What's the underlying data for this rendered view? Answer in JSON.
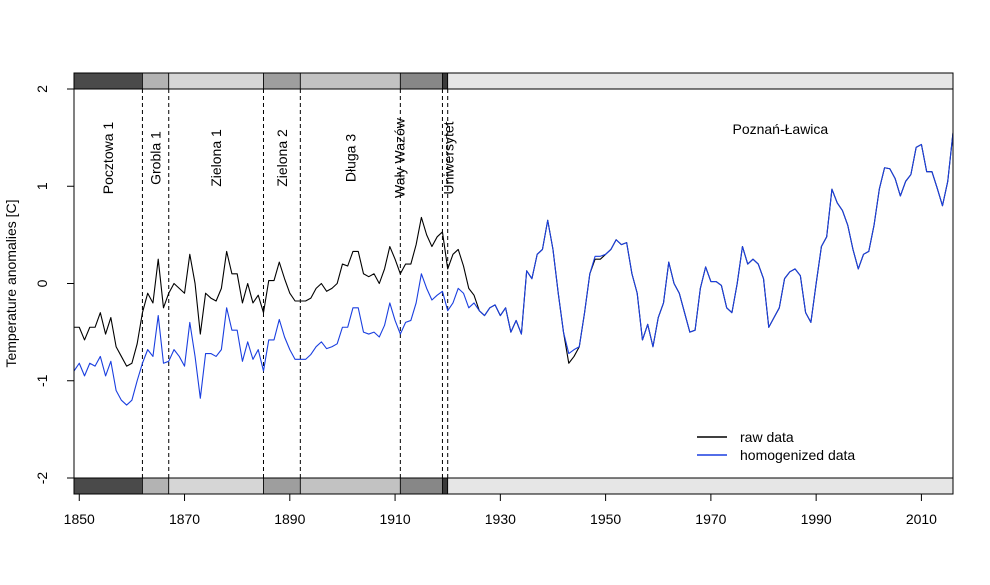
{
  "chart_data": {
    "type": "line",
    "title": "",
    "xlabel": "",
    "ylabel": "Temperature anomalies [C]",
    "xlim": [
      1849,
      2016
    ],
    "ylim": [
      -2,
      2
    ],
    "x_ticks": [
      "1850",
      "1870",
      "1890",
      "1910",
      "1930",
      "1950",
      "1970",
      "1990",
      "2010"
    ],
    "y_ticks": [
      "-2",
      "-1",
      "0",
      "1",
      "2"
    ],
    "grid": false,
    "legend_position": "bottom-right",
    "colors": {
      "raw": "#000000",
      "homogenized": "#1a3fe0"
    },
    "stations": [
      {
        "name": "Pocztowa 1",
        "start": 1849,
        "end": 1862,
        "shade": "#4a4a4a",
        "label_orientation": "vertical"
      },
      {
        "name": "Grobla 1",
        "start": 1862,
        "end": 1867,
        "shade": "#b3b3b3",
        "label_orientation": "vertical"
      },
      {
        "name": "Zielona 1",
        "start": 1867,
        "end": 1885,
        "shade": "#d6d6d6",
        "label_orientation": "vertical"
      },
      {
        "name": "Zielona 2",
        "start": 1885,
        "end": 1892,
        "shade": "#9e9e9e",
        "label_orientation": "vertical"
      },
      {
        "name": "Długa 3",
        "start": 1892,
        "end": 1911,
        "shade": "#c2c2c2",
        "label_orientation": "vertical"
      },
      {
        "name": "Wały Wazów",
        "start": 1911,
        "end": 1919,
        "shade": "#878787",
        "label_orientation": "vertical"
      },
      {
        "name": "Uniwersytet",
        "start": 1919,
        "end": 1920,
        "shade": "#3a3a3a",
        "label_orientation": "vertical"
      },
      {
        "name": "Poznań-Ławica",
        "start": 1920,
        "end": 2016,
        "shade": "#e6e6e6",
        "label_orientation": "horizontal"
      }
    ],
    "x": [
      1848,
      1849,
      1850,
      1851,
      1852,
      1853,
      1854,
      1855,
      1856,
      1857,
      1858,
      1859,
      1860,
      1861,
      1862,
      1863,
      1864,
      1865,
      1866,
      1867,
      1868,
      1869,
      1870,
      1871,
      1872,
      1873,
      1874,
      1875,
      1876,
      1877,
      1878,
      1879,
      1880,
      1881,
      1882,
      1883,
      1884,
      1885,
      1886,
      1887,
      1888,
      1889,
      1890,
      1891,
      1892,
      1893,
      1894,
      1895,
      1896,
      1897,
      1898,
      1899,
      1900,
      1901,
      1902,
      1903,
      1904,
      1905,
      1906,
      1907,
      1908,
      1909,
      1910,
      1911,
      1912,
      1913,
      1914,
      1915,
      1916,
      1917,
      1918,
      1919,
      1920,
      1921,
      1922,
      1923,
      1924,
      1925,
      1926,
      1927,
      1928,
      1929,
      1930,
      1931,
      1932,
      1933,
      1934,
      1935,
      1936,
      1937,
      1938,
      1939,
      1940,
      1941,
      1942,
      1943,
      1944,
      1945,
      1946,
      1947,
      1948,
      1949,
      1950,
      1951,
      1952,
      1953,
      1954,
      1955,
      1956,
      1957,
      1958,
      1959,
      1960,
      1961,
      1962,
      1963,
      1964,
      1965,
      1966,
      1967,
      1968,
      1969,
      1970,
      1971,
      1972,
      1973,
      1974,
      1975,
      1976,
      1977,
      1978,
      1979,
      1980,
      1981,
      1982,
      1983,
      1984,
      1985,
      1986,
      1987,
      1988,
      1989,
      1990,
      1991,
      1992,
      1993,
      1994,
      1995,
      1996,
      1997,
      1998,
      1999,
      2000,
      2001,
      2002,
      2003,
      2004,
      2005,
      2006,
      2007,
      2008,
      2009,
      2010,
      2011,
      2012,
      2013,
      2014,
      2015,
      2016
    ],
    "series": [
      {
        "name": "raw data",
        "key": "raw",
        "values": [
          -0.45,
          -0.45,
          -0.45,
          -0.58,
          -0.45,
          -0.45,
          -0.3,
          -0.52,
          -0.35,
          -0.65,
          -0.75,
          -0.85,
          -0.82,
          -0.62,
          -0.3,
          -0.1,
          -0.2,
          0.25,
          -0.25,
          -0.1,
          0.0,
          -0.05,
          -0.1,
          0.3,
          0.0,
          -0.52,
          -0.1,
          -0.15,
          -0.18,
          -0.05,
          0.33,
          0.1,
          0.1,
          -0.2,
          0.0,
          -0.2,
          -0.12,
          -0.3,
          0.03,
          0.03,
          0.22,
          0.05,
          -0.1,
          -0.18,
          -0.18,
          -0.18,
          -0.15,
          -0.05,
          0.0,
          -0.08,
          -0.05,
          0.0,
          0.2,
          0.18,
          0.33,
          0.33,
          0.1,
          0.07,
          0.1,
          0.0,
          0.15,
          0.38,
          0.25,
          0.1,
          0.2,
          0.2,
          0.4,
          0.68,
          0.5,
          0.38,
          0.48,
          0.53,
          0.15,
          0.3,
          0.35,
          0.18,
          -0.05,
          -0.12,
          -0.28,
          -0.33,
          -0.25,
          -0.22,
          -0.33,
          -0.25,
          -0.5,
          -0.38,
          -0.52,
          0.13,
          0.05,
          0.3,
          0.35,
          0.65,
          0.35,
          -0.1,
          -0.5,
          -0.82,
          -0.75,
          -0.65,
          -0.3,
          0.1,
          0.25,
          0.25,
          0.3,
          0.35,
          0.45,
          0.4,
          0.42,
          0.1,
          -0.1,
          -0.58,
          -0.42,
          -0.65,
          -0.35,
          -0.2,
          0.22,
          0.0,
          -0.1,
          -0.3,
          -0.5,
          -0.48,
          -0.05,
          0.17,
          0.02,
          0.02,
          -0.02,
          -0.25,
          -0.3,
          0.0,
          0.38,
          0.2,
          0.25,
          0.2,
          0.05,
          -0.45,
          -0.35,
          -0.25,
          0.05,
          0.12,
          0.15,
          0.08,
          -0.3,
          -0.4,
          0.0,
          0.38,
          0.48,
          0.97,
          0.83,
          0.75,
          0.6,
          0.35,
          0.15,
          0.3,
          0.33,
          0.6,
          0.97,
          1.19,
          1.18,
          1.08,
          0.9,
          1.05,
          1.12,
          1.4,
          1.43,
          1.15,
          1.15,
          0.98,
          0.8,
          1.05,
          1.55
        ]
      },
      {
        "name": "homogenized data",
        "key": "homogenized",
        "values": [
          -0.9,
          -0.9,
          -0.82,
          -0.95,
          -0.82,
          -0.85,
          -0.75,
          -0.95,
          -0.8,
          -1.1,
          -1.2,
          -1.25,
          -1.2,
          -1.0,
          -0.82,
          -0.68,
          -0.75,
          -0.33,
          -0.82,
          -0.8,
          -0.68,
          -0.75,
          -0.85,
          -0.4,
          -0.75,
          -1.18,
          -0.72,
          -0.72,
          -0.75,
          -0.68,
          -0.25,
          -0.48,
          -0.48,
          -0.8,
          -0.6,
          -0.78,
          -0.68,
          -0.9,
          -0.58,
          -0.58,
          -0.37,
          -0.55,
          -0.68,
          -0.78,
          -0.78,
          -0.78,
          -0.73,
          -0.65,
          -0.6,
          -0.67,
          -0.65,
          -0.62,
          -0.45,
          -0.45,
          -0.25,
          -0.25,
          -0.5,
          -0.52,
          -0.5,
          -0.55,
          -0.43,
          -0.2,
          -0.38,
          -0.52,
          -0.4,
          -0.38,
          -0.2,
          0.1,
          -0.05,
          -0.17,
          -0.12,
          -0.08,
          -0.28,
          -0.2,
          -0.05,
          -0.1,
          -0.25,
          -0.2,
          -0.28,
          -0.33,
          -0.25,
          -0.22,
          -0.33,
          -0.25,
          -0.5,
          -0.38,
          -0.52,
          0.13,
          0.05,
          0.3,
          0.35,
          0.65,
          0.35,
          -0.1,
          -0.5,
          -0.72,
          -0.68,
          -0.65,
          -0.3,
          0.1,
          0.28,
          0.28,
          0.3,
          0.35,
          0.45,
          0.4,
          0.42,
          0.1,
          -0.1,
          -0.58,
          -0.42,
          -0.65,
          -0.35,
          -0.2,
          0.22,
          0.0,
          -0.1,
          -0.3,
          -0.5,
          -0.48,
          -0.05,
          0.17,
          0.02,
          0.02,
          -0.02,
          -0.25,
          -0.3,
          0.0,
          0.38,
          0.2,
          0.25,
          0.2,
          0.05,
          -0.45,
          -0.35,
          -0.25,
          0.05,
          0.12,
          0.15,
          0.08,
          -0.3,
          -0.4,
          0.0,
          0.38,
          0.48,
          0.97,
          0.83,
          0.75,
          0.6,
          0.35,
          0.15,
          0.3,
          0.33,
          0.6,
          0.97,
          1.19,
          1.18,
          1.08,
          0.9,
          1.05,
          1.12,
          1.4,
          1.43,
          1.15,
          1.15,
          0.98,
          0.8,
          1.05,
          1.55
        ]
      }
    ]
  }
}
